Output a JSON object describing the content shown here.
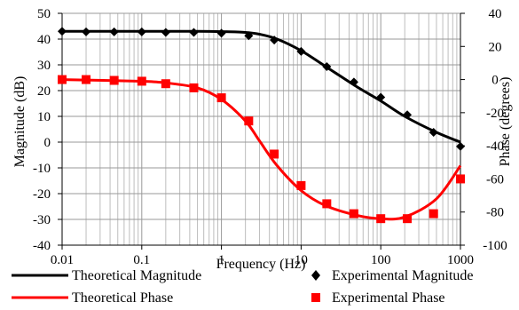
{
  "chart_data": {
    "type": "line",
    "xlabel": "Frequency (Hz)",
    "ylabel_left": "Magnitude (dB)",
    "ylabel_right": "Phase (degrees)",
    "x_scale": "log",
    "xlim": [
      0.01,
      1000
    ],
    "ylim_left": [
      -40,
      50
    ],
    "ylim_right": [
      -100,
      40
    ],
    "x_ticks": [
      "0.01",
      "0.1",
      "1",
      "10",
      "100",
      "1000"
    ],
    "y_ticks_left": [
      "50",
      "40",
      "30",
      "20",
      "10",
      "0",
      "-10",
      "-20",
      "-30",
      "-40"
    ],
    "y_ticks_right": [
      "40",
      "20",
      "0",
      "-20",
      "-40",
      "-60",
      "-80",
      "-100"
    ],
    "grid": true,
    "legend_position": "bottom",
    "series": [
      {
        "name": "Theoretical Magnitude",
        "axis": "left",
        "style": "line",
        "color": "#000000",
        "x": [
          0.01,
          0.1,
          0.5,
          1,
          2,
          3,
          5,
          10,
          20,
          50,
          100,
          200,
          500,
          1000
        ],
        "values": [
          43,
          43,
          43,
          42.9,
          42.6,
          41.9,
          40,
          35.5,
          29.5,
          21.5,
          16,
          10,
          3.8,
          0
        ]
      },
      {
        "name": "Experimental Magnitude",
        "axis": "left",
        "style": "diamond",
        "color": "#000000",
        "x": [
          0.01,
          0.02,
          0.045,
          0.1,
          0.2,
          0.45,
          1,
          2.2,
          4.6,
          10,
          21,
          46,
          100,
          215,
          460,
          1000
        ],
        "values": [
          43,
          42.8,
          42.8,
          42.8,
          42.6,
          42.6,
          42.3,
          41.3,
          39.6,
          35.2,
          29.3,
          23.3,
          17.4,
          10.6,
          3.8,
          -1.7
        ]
      },
      {
        "name": "Theoretical Phase",
        "axis": "right",
        "style": "line",
        "color": "#ff0000",
        "x": [
          0.01,
          0.1,
          0.2,
          0.5,
          1,
          2,
          3,
          5,
          10,
          20,
          50,
          100,
          200,
          500,
          1000
        ],
        "values": [
          0,
          -1,
          -2,
          -5,
          -12,
          -25,
          -37,
          -52,
          -67,
          -76,
          -82,
          -84,
          -83,
          -72,
          -52
        ]
      },
      {
        "name": "Experimental Phase",
        "axis": "right",
        "style": "square",
        "color": "#ff0000",
        "x": [
          0.01,
          0.02,
          0.045,
          0.1,
          0.2,
          0.45,
          1,
          2.2,
          4.6,
          10,
          21,
          46,
          100,
          215,
          460,
          1000
        ],
        "values": [
          0,
          0,
          -0.5,
          -1,
          -2.5,
          -5,
          -11,
          -25,
          -45,
          -64,
          -75,
          -81,
          -84,
          -84,
          -81,
          -60
        ]
      }
    ]
  }
}
